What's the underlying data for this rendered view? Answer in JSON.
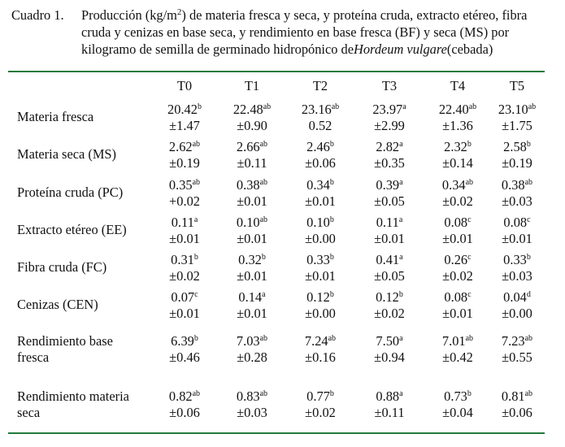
{
  "caption": {
    "label": "Cuadro 1.",
    "line1_a": "Producción (kg/m",
    "line1_sup": "2",
    "line1_b": ") de materia fresca y seca, y proteína cruda, extracto etéreo, fibra",
    "line2": "cruda y cenizas en base seca, y rendimiento en base fresca (BF) y seca (MS) por",
    "line3_a": "kilogramo de semilla de germinado hidropónico de ",
    "line3_italic": "Hordeum vulgare",
    "line3_b": " (cebada)"
  },
  "columns": [
    "T0",
    "T1",
    "T2",
    "T3",
    "T4",
    "T5"
  ],
  "rows": [
    {
      "label_lines": [
        "Materia fresca"
      ],
      "cells": [
        {
          "mean": "20.42",
          "sup": "b",
          "sd": "±1.47"
        },
        {
          "mean": "22.48",
          "sup": "ab",
          "sd": "±0.90"
        },
        {
          "mean": "23.16",
          "sup": "ab",
          "sd": "0.52"
        },
        {
          "mean": "23.97",
          "sup": "a",
          "sd": "±2.99"
        },
        {
          "mean": "22.40",
          "sup": "ab",
          "sd": "±1.36"
        },
        {
          "mean": "23.10",
          "sup": "ab",
          "sd": "±1.75"
        }
      ]
    },
    {
      "label_lines": [
        "Materia seca (MS)"
      ],
      "cells": [
        {
          "mean": "2.62",
          "sup": "ab",
          "sd": "±0.19"
        },
        {
          "mean": "2.66",
          "sup": "ab",
          "sd": "±0.11"
        },
        {
          "mean": "2.46",
          "sup": "b",
          "sd": "±0.06"
        },
        {
          "mean": "2.82",
          "sup": "a",
          "sd": "±0.35"
        },
        {
          "mean": "2.32",
          "sup": "b",
          "sd": "±0.14"
        },
        {
          "mean": "2.58",
          "sup": "b",
          "sd": "±0.19"
        }
      ]
    },
    {
      "label_lines": [
        "Proteína cruda (PC)"
      ],
      "cells": [
        {
          "mean": "0.35",
          "sup": "ab",
          "sd": "+0.02"
        },
        {
          "mean": "0.38",
          "sup": "ab",
          "sd": "±0.01"
        },
        {
          "mean": "0.34",
          "sup": "b",
          "sd": "±0.01"
        },
        {
          "mean": "0.39",
          "sup": "a",
          "sd": "±0.05"
        },
        {
          "mean": "0.34",
          "sup": "ab",
          "sd": "±0.02"
        },
        {
          "mean": "0.38",
          "sup": "ab",
          "sd": "±0.03"
        }
      ]
    },
    {
      "label_lines": [
        "Extracto etéreo (EE)"
      ],
      "cells": [
        {
          "mean": "0.11",
          "sup": "a",
          "sd": "±0.01"
        },
        {
          "mean": "0.10",
          "sup": "ab",
          "sd": "±0.01"
        },
        {
          "mean": "0.10",
          "sup": "b",
          "sd": "±0.00"
        },
        {
          "mean": "0.11",
          "sup": "a",
          "sd": "±0.01"
        },
        {
          "mean": "0.08",
          "sup": "c",
          "sd": "±0.01"
        },
        {
          "mean": "0.08",
          "sup": "c",
          "sd": "±0.01"
        }
      ]
    },
    {
      "label_lines": [
        "Fibra cruda (FC)"
      ],
      "cells": [
        {
          "mean": "0.31",
          "sup": "b",
          "sd": "±0.02"
        },
        {
          "mean": "0.32",
          "sup": "b",
          "sd": "±0.01"
        },
        {
          "mean": "0.33",
          "sup": "b",
          "sd": "±0.01"
        },
        {
          "mean": "0.41",
          "sup": "a",
          "sd": "±0.05"
        },
        {
          "mean": "0.26",
          "sup": "c",
          "sd": "±0.02"
        },
        {
          "mean": "0.33",
          "sup": "b",
          "sd": "±0.03"
        }
      ]
    },
    {
      "label_lines": [
        "Cenizas (CEN)"
      ],
      "cells": [
        {
          "mean": "0.07",
          "sup": "c",
          "sd": "±0.01"
        },
        {
          "mean": "0.14",
          "sup": "a",
          "sd": "±0.01"
        },
        {
          "mean": "0.12",
          "sup": "b",
          "sd": "±0.00"
        },
        {
          "mean": "0.12",
          "sup": "b",
          "sd": "±0.02"
        },
        {
          "mean": "0.08",
          "sup": "c",
          "sd": "±0.01"
        },
        {
          "mean": "0.04",
          "sup": "d",
          "sd": "±0.00"
        }
      ]
    },
    {
      "label_lines": [
        "Rendimiento base",
        "fresca"
      ],
      "cells": [
        {
          "mean": "6.39",
          "sup": "b",
          "sd": "±0.46"
        },
        {
          "mean": "7.03",
          "sup": "ab",
          "sd": "±0.28"
        },
        {
          "mean": "7.24",
          "sup": "ab",
          "sd": "±0.16"
        },
        {
          "mean": "7.50",
          "sup": "a",
          "sd": "±0.94"
        },
        {
          "mean": "7.01",
          "sup": "ab",
          "sd": "±0.42"
        },
        {
          "mean": "7.23",
          "sup": "ab",
          "sd": "±0.55"
        }
      ]
    },
    {
      "label_lines": [
        "Rendimiento materia",
        "seca"
      ],
      "cells": [
        {
          "mean": "0.82",
          "sup": "ab",
          "sd": "±0.06"
        },
        {
          "mean": "0.83",
          "sup": "ab",
          "sd": "±0.03"
        },
        {
          "mean": "0.77",
          "sup": "b",
          "sd": "±0.02"
        },
        {
          "mean": "0.88",
          "sup": "a",
          "sd": "±0.11"
        },
        {
          "mean": "0.73",
          "sup": "b",
          "sd": "±0.04"
        },
        {
          "mean": "0.81",
          "sup": "ab",
          "sd": "±0.06"
        }
      ]
    }
  ]
}
